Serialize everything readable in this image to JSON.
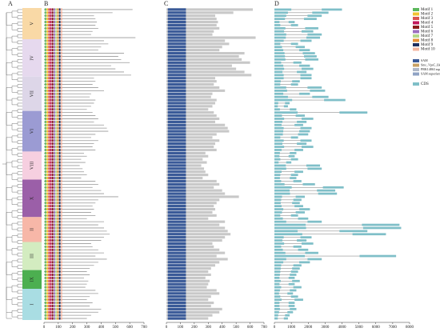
{
  "panels": {
    "a": "A",
    "b": "B",
    "c": "C",
    "d": "D"
  },
  "groups": [
    {
      "label": "V",
      "start": 0,
      "end": 9,
      "color": "#f9d9a6"
    },
    {
      "label": "IV",
      "start": 10,
      "end": 21,
      "color": "#e6d9ee"
    },
    {
      "label": "VII",
      "start": 22,
      "end": 32,
      "color": "#ddd6e8"
    },
    {
      "label": "VI",
      "start": 33,
      "end": 45,
      "color": "#9b9bd3"
    },
    {
      "label": "VIII",
      "start": 46,
      "end": 54,
      "color": "#f6cfe0"
    },
    {
      "label": "X",
      "start": 55,
      "end": 66,
      "color": "#9b5fa8"
    },
    {
      "label": "II",
      "start": 67,
      "end": 74,
      "color": "#f7b7a8"
    },
    {
      "label": "III",
      "start": 75,
      "end": 83,
      "color": "#d3ecc0"
    },
    {
      "label": "IX",
      "start": 84,
      "end": 89,
      "color": "#4caf50"
    },
    {
      "label": "I",
      "start": 90,
      "end": 99,
      "color": "#a9dde3"
    }
  ],
  "protein_lengths": [
    620,
    480,
    350,
    360,
    370,
    360,
    380,
    340,
    330,
    640,
    420,
    450,
    400,
    380,
    560,
    520,
    540,
    600,
    470,
    500,
    560,
    610,
    350,
    360,
    340,
    380,
    420,
    330,
    320,
    360,
    350,
    330,
    300,
    340,
    360,
    380,
    350,
    420,
    440,
    450,
    360,
    330,
    380,
    350,
    340,
    360,
    280,
    300,
    260,
    290,
    250,
    270,
    280,
    300,
    260,
    360,
    380,
    340,
    400,
    420,
    520,
    380,
    360,
    340,
    350,
    330,
    360,
    300,
    420,
    380,
    420,
    440,
    460,
    420,
    400,
    330,
    340,
    380,
    420,
    360,
    440,
    380,
    350,
    320,
    300,
    320,
    280,
    310,
    300,
    290,
    360,
    380,
    320,
    300,
    340,
    320,
    400,
    380,
    330,
    300
  ],
  "gene_lengths": [
    4000,
    3200,
    2800,
    2500,
    1200,
    1400,
    2600,
    2300,
    2800,
    2700,
    2200,
    1400,
    1800,
    2100,
    2400,
    2500,
    2600,
    1600,
    2100,
    2300,
    1900,
    2200,
    2200,
    1500,
    1400,
    2800,
    3000,
    2100,
    3200,
    4200,
    900,
    800,
    1300,
    5500,
    1800,
    2300,
    1900,
    1700,
    2200,
    2100,
    2000,
    1400,
    2200,
    1900,
    2300,
    1700,
    1300,
    1200,
    1400,
    1000,
    2700,
    2800,
    1700,
    1400,
    1300,
    1600,
    2400,
    4100,
    3600,
    3700,
    1800,
    1600,
    1500,
    1700,
    2100,
    1800,
    1400,
    2000,
    2800,
    7400,
    7500,
    5500,
    6600,
    2200,
    1900,
    2300,
    1600,
    2000,
    2600,
    7200,
    2800,
    2100,
    1600,
    1500,
    1400,
    1300,
    1200,
    1500,
    1200,
    1600,
    1300,
    1100,
    1400,
    1700,
    1200,
    1200,
    1300,
    1100,
    900,
    800
  ],
  "motif_starts": [
    5,
    18,
    30,
    42,
    55,
    68,
    80,
    92,
    105,
    118
  ],
  "motif_width": 10,
  "sam_domain": [
    10,
    140
  ],
  "protein_xlim": [
    0,
    700
  ],
  "protein_xticks": [
    0,
    100,
    200,
    300,
    400,
    500,
    600,
    700
  ],
  "gene_xlim": [
    0,
    8000
  ],
  "gene_xticks": [
    0,
    1000,
    2000,
    3000,
    4000,
    5000,
    6000,
    7000,
    8000
  ],
  "motifs": [
    {
      "name": "Motif 1",
      "color": "#5cb85c"
    },
    {
      "name": "Motif 2",
      "color": "#f0c330"
    },
    {
      "name": "Motif 3",
      "color": "#d9534f"
    },
    {
      "name": "Motif 4",
      "color": "#c2185b"
    },
    {
      "name": "Motif 5",
      "color": "#8b1a1a"
    },
    {
      "name": "Motif 6",
      "color": "#9c6fbf"
    },
    {
      "name": "Motif 7",
      "color": "#b5d98a"
    },
    {
      "name": "Motif 8",
      "color": "#e69138"
    },
    {
      "name": "Motif 9",
      "color": "#1f2f5f"
    },
    {
      "name": "Motif 10",
      "color": "#f4b6a0"
    }
  ],
  "domains": [
    {
      "name": "SAM",
      "color": "#3a5a98"
    },
    {
      "name": "Smc_VpsC_like superfamily",
      "color": "#c8a165"
    },
    {
      "name": "PRK14863 superfamily",
      "color": "#b0b8c8"
    },
    {
      "name": "SAM superfamily",
      "color": "#8fa3c4"
    }
  ],
  "cds": {
    "name": "CDS",
    "color": "#7fbfc8"
  }
}
